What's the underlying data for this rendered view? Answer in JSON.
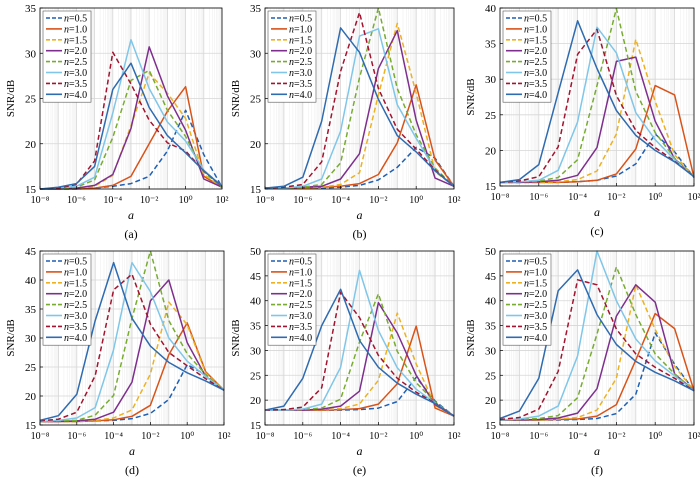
{
  "figure": {
    "colors": {
      "n0.5": "#1f5fb4",
      "n1.0": "#d95319",
      "n1.5": "#edb120",
      "n2.0": "#7e2f8e",
      "n2.5": "#77ac30",
      "n3.0": "#7fc6e8",
      "n3.5": "#a2142f",
      "n4.0": "#2e6bb0"
    }
  },
  "chart_data": [
    {
      "type": "line",
      "caption": "(a)",
      "xlabel": "a",
      "ylabel": "SNR/dB",
      "x_ticks": [
        "10⁻⁸",
        "10⁻⁶",
        "10⁻⁴",
        "10⁻²",
        "10⁰",
        "10²"
      ],
      "ylim": [
        15,
        35
      ],
      "y_ticks": [
        15,
        20,
        25,
        30,
        35
      ],
      "grid": true,
      "x_exponents": [
        -8,
        -7,
        -6,
        -5,
        -4,
        -3,
        -2,
        -1,
        0,
        1,
        2
      ],
      "series": [
        {
          "name": "n=0.5",
          "dash": "dashed",
          "color": "n0.5",
          "values": [
            15,
            15,
            15,
            15.1,
            15.3,
            15.6,
            16.4,
            19.2,
            23.7,
            18.8,
            15.2
          ]
        },
        {
          "name": "n=1.0",
          "dash": "solid",
          "color": "n1.0",
          "values": [
            15,
            15,
            15,
            15.1,
            15.4,
            16.4,
            20.0,
            23.6,
            26.3,
            16.4,
            15.2
          ]
        },
        {
          "name": "n=1.5",
          "dash": "dashed",
          "color": "n1.5",
          "values": [
            15,
            15,
            15.1,
            15.3,
            16.5,
            22.0,
            27.8,
            25.6,
            22.8,
            16.6,
            15.2
          ]
        },
        {
          "name": "n=2.0",
          "dash": "solid",
          "color": "n2.0",
          "values": [
            15,
            15,
            15.1,
            15.4,
            16.6,
            21.7,
            30.7,
            25.3,
            21.5,
            16.1,
            15.2
          ]
        },
        {
          "name": "n=2.5",
          "dash": "dashed",
          "color": "n2.5",
          "values": [
            15,
            15,
            15.2,
            16.0,
            20.7,
            27.0,
            28.1,
            23.7,
            20.8,
            16.9,
            15.2
          ]
        },
        {
          "name": "n=3.0",
          "dash": "solid",
          "color": "n3.0",
          "values": [
            15,
            15.1,
            15.3,
            16.3,
            23.4,
            31.5,
            26.1,
            22.4,
            20.3,
            17.1,
            15.3
          ]
        },
        {
          "name": "n=3.5",
          "dash": "dashed",
          "color": "n3.5",
          "values": [
            15,
            15.1,
            15.5,
            18.1,
            30.1,
            26.6,
            22.6,
            20.1,
            19.2,
            17.0,
            15.3
          ]
        },
        {
          "name": "n=4.0",
          "dash": "solid",
          "color": "n4.0",
          "values": [
            15,
            15.2,
            15.6,
            17.5,
            26.0,
            28.9,
            24.0,
            20.9,
            19.0,
            17.0,
            15.3
          ]
        }
      ]
    },
    {
      "type": "line",
      "caption": "(b)",
      "xlabel": "a",
      "ylabel": "SNR/dB",
      "x_ticks": [
        "10⁻⁸",
        "10⁻⁶",
        "10⁻⁴",
        "10⁻²",
        "10⁰",
        "10²"
      ],
      "ylim": [
        15,
        35
      ],
      "y_ticks": [
        15,
        20,
        25,
        30,
        35
      ],
      "grid": true,
      "x_exponents": [
        -8,
        -7,
        -6,
        -5,
        -4,
        -3,
        -2,
        -1,
        0,
        1,
        2
      ],
      "series": [
        {
          "name": "n=0.5",
          "dash": "dashed",
          "color": "n0.5",
          "values": [
            15.1,
            15.1,
            15.1,
            15.1,
            15.2,
            15.4,
            16.0,
            17.4,
            19.6,
            18.4,
            15.3
          ]
        },
        {
          "name": "n=1.0",
          "dash": "solid",
          "color": "n1.0",
          "values": [
            15.1,
            15.1,
            15.1,
            15.2,
            15.3,
            15.6,
            16.6,
            20.1,
            26.5,
            18.2,
            15.3
          ]
        },
        {
          "name": "n=1.5",
          "dash": "dashed",
          "color": "n1.5",
          "values": [
            15.1,
            15.1,
            15.1,
            15.2,
            15.5,
            16.8,
            25.4,
            33.3,
            25.6,
            16.9,
            15.3
          ]
        },
        {
          "name": "n=2.0",
          "dash": "solid",
          "color": "n2.0",
          "values": [
            15.1,
            15.1,
            15.2,
            15.3,
            16.1,
            18.9,
            28.3,
            32.5,
            22.6,
            16.2,
            15.3
          ]
        },
        {
          "name": "n=2.5",
          "dash": "dashed",
          "color": "n2.5",
          "values": [
            15.1,
            15.1,
            15.2,
            15.5,
            17.9,
            27.3,
            35.0,
            26.1,
            21.0,
            17.3,
            15.3
          ]
        },
        {
          "name": "n=3.0",
          "dash": "solid",
          "color": "n3.0",
          "values": [
            15.1,
            15.1,
            15.3,
            16.1,
            21.4,
            31.9,
            32.7,
            24.3,
            20.6,
            17.1,
            15.3
          ]
        },
        {
          "name": "n=3.5",
          "dash": "dashed",
          "color": "n3.5",
          "values": [
            15.1,
            15.2,
            15.5,
            18.0,
            28.0,
            34.5,
            26.1,
            21.6,
            19.4,
            17.1,
            15.3
          ]
        },
        {
          "name": "n=4.0",
          "dash": "solid",
          "color": "n4.0",
          "values": [
            15.1,
            15.3,
            16.3,
            22.5,
            32.8,
            30.1,
            24.9,
            20.9,
            19.1,
            17.0,
            15.3
          ]
        }
      ]
    },
    {
      "type": "line",
      "caption": "(c)",
      "xlabel": "a",
      "ylabel": "SNR/dB",
      "x_ticks": [
        "10⁻⁸",
        "10⁻⁶",
        "10⁻⁴",
        "10⁻²",
        "10⁰",
        "10²"
      ],
      "ylim": [
        15,
        40
      ],
      "y_ticks": [
        15,
        20,
        25,
        30,
        35,
        40
      ],
      "grid": true,
      "x_exponents": [
        -8,
        -7,
        -6,
        -5,
        -4,
        -3,
        -2,
        -1,
        0,
        1,
        2
      ],
      "series": [
        {
          "name": "n=0.5",
          "dash": "dashed",
          "color": "n0.5",
          "values": [
            15.5,
            15.5,
            15.5,
            15.5,
            15.6,
            15.8,
            16.4,
            18.1,
            22.3,
            19.8,
            16.2
          ]
        },
        {
          "name": "n=1.0",
          "dash": "solid",
          "color": "n1.0",
          "values": [
            15.5,
            15.5,
            15.5,
            15.5,
            15.6,
            15.8,
            16.7,
            20.2,
            29.1,
            27.8,
            16.2
          ]
        },
        {
          "name": "n=1.5",
          "dash": "dashed",
          "color": "n1.5",
          "values": [
            15.5,
            15.5,
            15.5,
            15.6,
            15.9,
            17.1,
            22.3,
            35.6,
            26.9,
            19.4,
            16.3
          ]
        },
        {
          "name": "n=2.0",
          "dash": "solid",
          "color": "n2.0",
          "values": [
            15.5,
            15.5,
            15.6,
            15.8,
            16.5,
            20.4,
            32.5,
            33.1,
            24.1,
            18.8,
            16.3
          ]
        },
        {
          "name": "n=2.5",
          "dash": "dashed",
          "color": "n2.5",
          "values": [
            15.5,
            15.6,
            15.7,
            16.2,
            18.7,
            29.1,
            39.9,
            28.3,
            22.5,
            18.9,
            16.3
          ]
        },
        {
          "name": "n=3.0",
          "dash": "solid",
          "color": "n3.0",
          "values": [
            15.5,
            15.6,
            15.8,
            17.2,
            24.0,
            37.3,
            33.7,
            25.3,
            21.5,
            18.7,
            16.3
          ]
        },
        {
          "name": "n=3.5",
          "dash": "dashed",
          "color": "n3.5",
          "values": [
            15.5,
            15.7,
            16.3,
            20.5,
            33.5,
            37.0,
            27.7,
            22.8,
            20.4,
            18.5,
            16.3
          ]
        },
        {
          "name": "n=4.0",
          "dash": "solid",
          "color": "n4.0",
          "values": [
            15.5,
            15.9,
            18.0,
            28.1,
            38.2,
            31.5,
            25.6,
            22.1,
            20.0,
            18.4,
            16.3
          ]
        }
      ]
    },
    {
      "type": "line",
      "caption": "(d)",
      "xlabel": "a",
      "ylabel": "SNR/dB",
      "x_ticks": [
        "10⁻⁸",
        "10⁻⁶",
        "10⁻⁴",
        "10⁻²",
        "10⁰",
        "10²"
      ],
      "ylim": [
        15,
        45
      ],
      "y_ticks": [
        15,
        20,
        25,
        30,
        35,
        40,
        45
      ],
      "grid": true,
      "x_exponents": [
        -8,
        -7,
        -6,
        -5,
        -4,
        -3,
        -2,
        -1,
        0,
        1,
        2
      ],
      "series": [
        {
          "name": "n=0.5",
          "dash": "dashed",
          "color": "n0.5",
          "values": [
            15.6,
            15.6,
            15.6,
            15.7,
            15.8,
            16.1,
            17.0,
            19.4,
            25.4,
            23.7,
            21.0
          ]
        },
        {
          "name": "n=1.0",
          "dash": "solid",
          "color": "n1.0",
          "values": [
            15.6,
            15.6,
            15.6,
            15.7,
            15.9,
            16.5,
            18.4,
            27.1,
            32.6,
            24.2,
            21.0
          ]
        },
        {
          "name": "n=1.5",
          "dash": "dashed",
          "color": "n1.5",
          "values": [
            15.6,
            15.6,
            15.6,
            15.8,
            16.2,
            17.6,
            23.8,
            36.2,
            32.3,
            24.0,
            21.0
          ]
        },
        {
          "name": "n=2.0",
          "dash": "solid",
          "color": "n2.0",
          "values": [
            15.6,
            15.6,
            15.7,
            16.0,
            17.2,
            22.4,
            36.4,
            40.0,
            29.2,
            23.4,
            21.0
          ]
        },
        {
          "name": "n=2.5",
          "dash": "dashed",
          "color": "n2.5",
          "values": [
            15.6,
            15.7,
            15.8,
            16.7,
            20.1,
            33.4,
            45.0,
            33.0,
            27.3,
            23.7,
            21.0
          ]
        },
        {
          "name": "n=3.0",
          "dash": "solid",
          "color": "n3.0",
          "values": [
            15.6,
            15.8,
            16.2,
            18.0,
            28.0,
            43.0,
            38.0,
            30.0,
            26.0,
            23.4,
            21.0
          ]
        },
        {
          "name": "n=3.5",
          "dash": "dashed",
          "color": "n3.5",
          "values": [
            15.7,
            16.0,
            17.2,
            23.5,
            38.3,
            41.0,
            32.4,
            27.5,
            25.2,
            23.0,
            21.0
          ]
        },
        {
          "name": "n=4.0",
          "dash": "solid",
          "color": "n4.0",
          "values": [
            15.8,
            16.6,
            20.3,
            33.0,
            43.0,
            33.4,
            28.6,
            25.8,
            24.0,
            22.6,
            21.0
          ]
        }
      ]
    },
    {
      "type": "line",
      "caption": "(e)",
      "xlabel": "a",
      "ylabel": "SNR/dB",
      "x_ticks": [
        "10⁻⁸",
        "10⁻⁶",
        "10⁻⁴",
        "10⁻²",
        "10⁰",
        "10²"
      ],
      "ylim": [
        15,
        50
      ],
      "y_ticks": [
        15,
        20,
        25,
        30,
        35,
        40,
        45,
        50
      ],
      "grid": true,
      "x_exponents": [
        -8,
        -7,
        -6,
        -5,
        -4,
        -3,
        -2,
        -1,
        0,
        1,
        2
      ],
      "series": [
        {
          "name": "n=0.5",
          "dash": "dashed",
          "color": "n0.5",
          "values": [
            18.0,
            18.0,
            18.0,
            18.0,
            18.0,
            18.1,
            18.4,
            19.7,
            24.6,
            19.8,
            16.8
          ]
        },
        {
          "name": "n=1.0",
          "dash": "solid",
          "color": "n1.0",
          "values": [
            18.0,
            18.0,
            18.0,
            18.0,
            18.1,
            18.3,
            19.2,
            23.3,
            34.9,
            18.4,
            16.8
          ]
        },
        {
          "name": "n=1.5",
          "dash": "dashed",
          "color": "n1.5",
          "values": [
            18.0,
            18.0,
            18.0,
            18.1,
            18.3,
            19.2,
            24.0,
            37.5,
            27.3,
            18.9,
            16.8
          ]
        },
        {
          "name": "n=2.0",
          "dash": "solid",
          "color": "n2.0",
          "values": [
            18.0,
            18.0,
            18.0,
            18.2,
            18.8,
            21.8,
            39.6,
            33.5,
            25.0,
            19.1,
            16.8
          ]
        },
        {
          "name": "n=2.5",
          "dash": "dashed",
          "color": "n2.5",
          "values": [
            18.0,
            18.0,
            18.1,
            18.4,
            20.2,
            31.7,
            41.4,
            29.8,
            23.5,
            19.6,
            16.8
          ]
        },
        {
          "name": "n=3.0",
          "dash": "solid",
          "color": "n3.0",
          "values": [
            18.0,
            18.0,
            18.2,
            19.2,
            26.6,
            46.1,
            34.0,
            26.5,
            22.2,
            19.4,
            16.8
          ]
        },
        {
          "name": "n=3.5",
          "dash": "dashed",
          "color": "n3.5",
          "values": [
            18.0,
            18.1,
            18.6,
            22.5,
            41.7,
            36.6,
            29.0,
            24.4,
            21.6,
            19.4,
            16.8
          ]
        },
        {
          "name": "n=4.0",
          "dash": "solid",
          "color": "n4.0",
          "values": [
            18.0,
            18.8,
            24.4,
            35.0,
            42.3,
            32.0,
            26.6,
            23.4,
            21.2,
            19.3,
            16.8
          ]
        }
      ]
    },
    {
      "type": "line",
      "caption": "(f)",
      "xlabel": "a",
      "ylabel": "SNR/dB",
      "x_ticks": [
        "10⁻⁸",
        "10⁻⁶",
        "10⁻⁴",
        "10⁻²",
        "10⁰",
        "10²"
      ],
      "ylim": [
        15,
        50
      ],
      "y_ticks": [
        15,
        20,
        25,
        30,
        35,
        40,
        45,
        50
      ],
      "grid": true,
      "x_exponents": [
        -8,
        -7,
        -6,
        -5,
        -4,
        -3,
        -2,
        -1,
        0,
        1,
        2
      ],
      "series": [
        {
          "name": "n=0.5",
          "dash": "dashed",
          "color": "n0.5",
          "values": [
            16.0,
            16.0,
            16.0,
            16.0,
            16.1,
            16.3,
            17.3,
            21.2,
            33.5,
            27.2,
            21.9
          ]
        },
        {
          "name": "n=1.0",
          "dash": "solid",
          "color": "n1.0",
          "values": [
            16.0,
            16.0,
            16.0,
            16.1,
            16.2,
            16.8,
            19.1,
            28.1,
            37.4,
            34.4,
            21.9
          ]
        },
        {
          "name": "n=1.5",
          "dash": "dashed",
          "color": "n1.5",
          "values": [
            16.0,
            16.0,
            16.0,
            16.2,
            16.5,
            18.0,
            24.4,
            43.2,
            34.2,
            26.8,
            21.9
          ]
        },
        {
          "name": "n=2.0",
          "dash": "solid",
          "color": "n2.0",
          "values": [
            16.0,
            16.0,
            16.1,
            16.4,
            17.4,
            22.3,
            36.9,
            43.2,
            39.7,
            25.3,
            21.9
          ]
        },
        {
          "name": "n=2.5",
          "dash": "dashed",
          "color": "n2.5",
          "values": [
            16.0,
            16.1,
            16.3,
            16.9,
            20.5,
            33.3,
            46.8,
            37.2,
            29.3,
            25.3,
            21.9
          ]
        },
        {
          "name": "n=3.0",
          "dash": "solid",
          "color": "n3.0",
          "values": [
            16.0,
            16.2,
            16.8,
            18.8,
            28.9,
            50.0,
            40.0,
            32.3,
            27.9,
            24.9,
            21.9
          ]
        },
        {
          "name": "n=3.5",
          "dash": "dashed",
          "color": "n3.5",
          "values": [
            16.1,
            16.5,
            18.2,
            25.8,
            44.2,
            43.2,
            34.3,
            29.3,
            26.6,
            24.4,
            21.9
          ]
        },
        {
          "name": "n=4.0",
          "dash": "solid",
          "color": "n4.0",
          "values": [
            16.3,
            17.8,
            24.4,
            42.0,
            46.2,
            37.2,
            31.2,
            27.8,
            25.6,
            23.9,
            21.9
          ]
        }
      ]
    }
  ]
}
